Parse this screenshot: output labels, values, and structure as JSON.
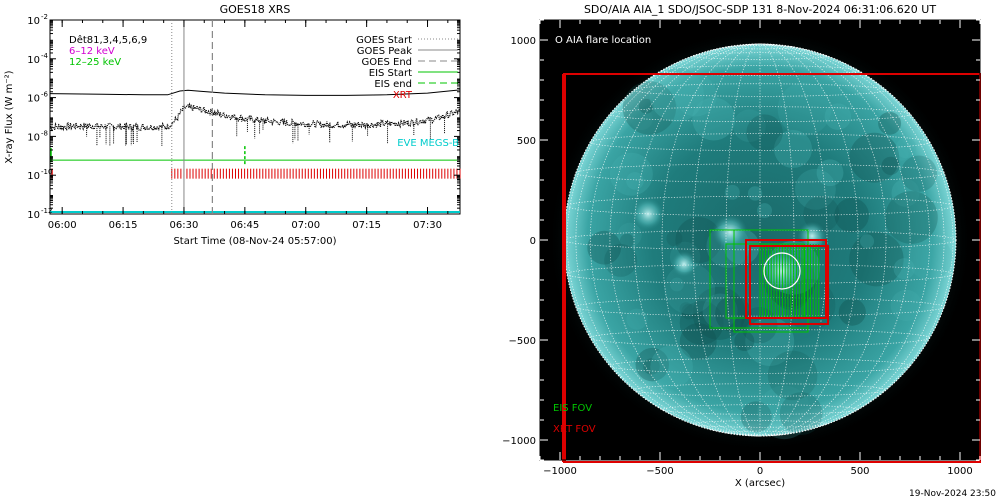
{
  "chart_data": [
    {
      "type": "line",
      "title": "GOES18 XRS",
      "xlabel": "Start Time (08-Nov-24 05:57:00)",
      "ylabel": "X-ray Flux (W m⁻²)",
      "y_scale": "log",
      "ylim": [
        1e-12,
        0.01
      ],
      "xlim": [
        "05:57",
        "07:38"
      ],
      "x_ticks": [
        "06:00",
        "06:15",
        "06:30",
        "06:45",
        "07:00",
        "07:15",
        "07:30"
      ],
      "y_ticks": [
        {
          "base": "10",
          "exp": "-12",
          "value": 1e-12
        },
        {
          "base": "10",
          "exp": "-10",
          "value": 1e-10
        },
        {
          "base": "10",
          "exp": "-8",
          "value": 1e-08
        },
        {
          "base": "10",
          "exp": "-6",
          "value": 1e-06
        },
        {
          "base": "10",
          "exp": "-4",
          "value": 0.0001
        },
        {
          "base": "10",
          "exp": "-2",
          "value": 0.01
        }
      ],
      "legend_left": [
        {
          "label": "Dêt81,3,4,5,6,9",
          "color": "#000000"
        },
        {
          "label": "6–12 keV",
          "color": "#d100d1"
        },
        {
          "label": "12–25 keV",
          "color": "#00c400"
        }
      ],
      "legend_right": [
        {
          "label": "GOES Start",
          "style": "dotted",
          "color": "#888888"
        },
        {
          "label": "GOES Peak",
          "style": "solid",
          "color": "#888888"
        },
        {
          "label": "GOES End",
          "style": "dashed",
          "color": "#888888"
        },
        {
          "label": "EIS Start",
          "style": "solid",
          "color": "#00c400"
        },
        {
          "label": "EIS end",
          "style": "dashed",
          "color": "#00c400"
        },
        {
          "label": "XRT",
          "style": "text",
          "color": "#dd0000"
        }
      ],
      "annotations": [
        {
          "label": "EVE MEGS-B",
          "color": "#00cccc"
        }
      ],
      "markers": {
        "goes_start": "06:27",
        "goes_peak": "06:30",
        "goes_end": "06:37",
        "eis_start": "06:45"
      },
      "series": [
        {
          "name": "GOES long",
          "color": "#000000",
          "x": [
            "05:57",
            "06:10",
            "06:20",
            "06:26",
            "06:29",
            "06:31",
            "06:34",
            "06:40",
            "06:50",
            "07:00",
            "07:10",
            "07:20",
            "07:30",
            "07:38"
          ],
          "values": [
            1.6e-06,
            1.5e-06,
            1.4e-06,
            1.4e-06,
            2.2e-06,
            2.4e-06,
            2.1e-06,
            1.7e-06,
            1.4e-06,
            1.3e-06,
            1.3e-06,
            1.4e-06,
            1.7e-06,
            2.5e-06
          ]
        },
        {
          "name": "GOES short",
          "color": "#000000",
          "x": [
            "05:57",
            "06:05",
            "06:15",
            "06:22",
            "06:26",
            "06:28",
            "06:30",
            "06:33",
            "06:38",
            "06:45",
            "06:55",
            "07:05",
            "07:15",
            "07:25",
            "07:32",
            "07:38"
          ],
          "values": [
            3e-08,
            3.5e-08,
            3.2e-08,
            3e-08,
            3.2e-08,
            7e-08,
            3e-07,
            2.8e-07,
            1.5e-07,
            8e-08,
            5e-08,
            4e-08,
            4e-08,
            5e-08,
            8e-08,
            2e-07
          ]
        },
        {
          "name": "EIS",
          "color": "#00c400",
          "x": [
            "05:57",
            "07:38"
          ],
          "values": [
            6e-10,
            6e-10
          ]
        },
        {
          "name": "XRT",
          "color": "#dd0000",
          "x": [
            "06:27",
            "07:38"
          ],
          "values": [
            1.2e-10,
            1.2e-10
          ]
        },
        {
          "name": "EVE MEGS-B",
          "color": "#00cccc",
          "x": [
            "05:57",
            "07:38"
          ],
          "values": [
            1e-12,
            1e-12
          ]
        }
      ]
    },
    {
      "type": "scatter",
      "title": "SDO/AIA AIA_1 SDO/JSOC-SDP 131  8-Nov-2024 06:31:06.620 UT",
      "xlabel": "X (arcsec)",
      "ylabel": "",
      "xlim": [
        -1100,
        1100
      ],
      "ylim": [
        -1100,
        1100
      ],
      "x_ticks": [
        "−1000",
        "−500",
        "0",
        "500",
        "1000"
      ],
      "y_ticks": [
        "1000",
        "500",
        "0",
        "−500",
        "−1000"
      ],
      "solar_radius_arcsec": 980,
      "legend": [
        {
          "label": "O AIA flare location",
          "color": "#ffffff"
        },
        {
          "label": "EIS FOV",
          "color": "#00c400"
        },
        {
          "label": "XRT FOV",
          "color": "#dd0000"
        }
      ],
      "flare_location": {
        "x": 110,
        "y": -155,
        "r": 90
      },
      "eis_fov": [
        {
          "x0": -250,
          "y0": -440,
          "x1": 240,
          "y1": 50
        },
        {
          "x0": -130,
          "y0": -460,
          "x1": 240,
          "y1": 50
        },
        {
          "x0": -170,
          "y0": -390,
          "x1": 220,
          "y1": -20
        }
      ],
      "xrt_fov": [
        {
          "x0": -980,
          "y0": -1110,
          "x1": 1100,
          "y1": 830
        },
        {
          "x0": -70,
          "y0": -390,
          "x1": 330,
          "y1": 0
        },
        {
          "x0": -50,
          "y0": -420,
          "x1": 340,
          "y1": -30
        }
      ],
      "footer": "19-Nov-2024 23:50"
    }
  ]
}
